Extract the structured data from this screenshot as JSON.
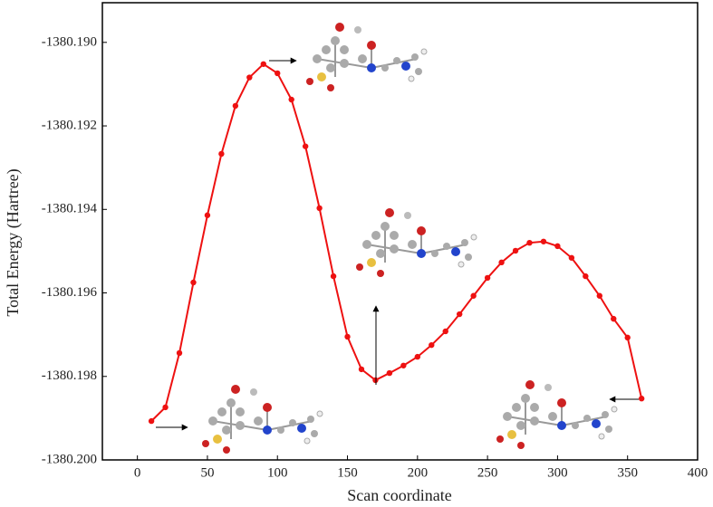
{
  "chart_data": {
    "type": "line",
    "x_label": "Scan coordinate",
    "y_label": "Total Energy (Hartree)",
    "x": [
      10,
      20,
      30,
      40,
      50,
      60,
      70,
      80,
      90,
      100,
      110,
      120,
      130,
      140,
      150,
      160,
      170,
      180,
      190,
      200,
      210,
      220,
      230,
      240,
      250,
      260,
      270,
      280,
      290,
      300,
      310,
      320,
      330,
      340,
      350,
      360
    ],
    "series": [
      {
        "name": "Energy",
        "color": "#ee1111",
        "values": [
          -1380.19907,
          -1380.19874,
          -1380.19744,
          -1380.19575,
          -1380.19414,
          -1380.19267,
          -1380.19152,
          -1380.19084,
          -1380.19052,
          -1380.19074,
          -1380.19137,
          -1380.19249,
          -1380.19397,
          -1380.1956,
          -1380.19705,
          -1380.19783,
          -1380.19809,
          -1380.19792,
          -1380.19774,
          -1380.19753,
          -1380.19725,
          -1380.19692,
          -1380.19651,
          -1380.19607,
          -1380.19564,
          -1380.19527,
          -1380.19499,
          -1380.1948,
          -1380.19477,
          -1380.19488,
          -1380.19516,
          -1380.1956,
          -1380.19607,
          -1380.19662,
          -1380.19707,
          -1380.19853
        ]
      }
    ],
    "xlim": [
      -25,
      400
    ],
    "xticks": [
      0,
      50,
      100,
      150,
      200,
      250,
      300,
      350,
      400
    ],
    "ylim": [
      -1380.2,
      -1380.18905
    ],
    "yticks": [
      {
        "value": -1380.2,
        "label": "-1380.200"
      },
      {
        "value": -1380.198,
        "label": "-1380.198"
      },
      {
        "value": -1380.196,
        "label": "-1380.196"
      },
      {
        "value": -1380.194,
        "label": "-1380.194"
      },
      {
        "value": -1380.192,
        "label": "-1380.192"
      },
      {
        "value": -1380.19,
        "label": "-1380.190"
      }
    ]
  }
}
